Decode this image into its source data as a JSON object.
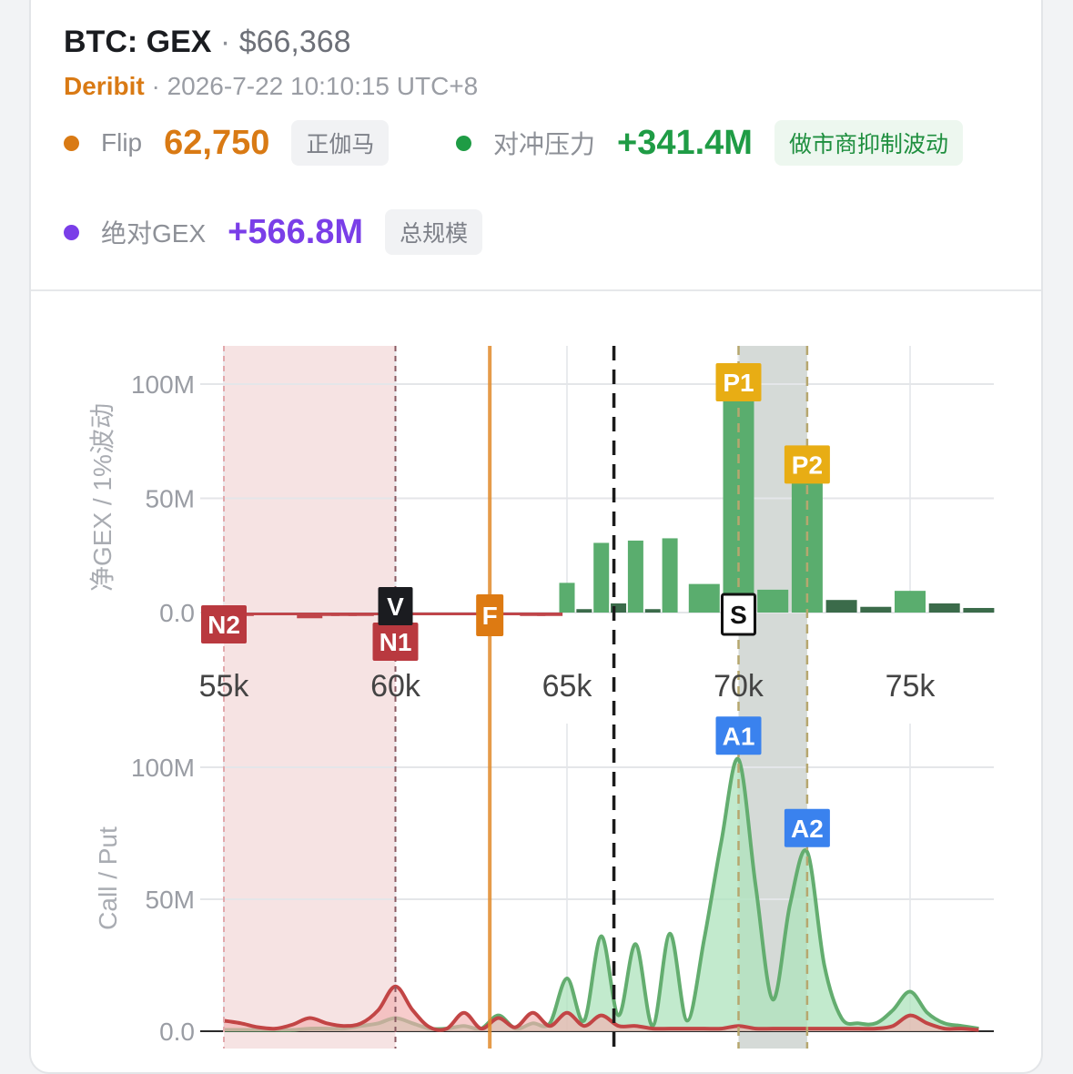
{
  "header": {
    "title": "BTC: GEX",
    "separator": "·",
    "price": "$66,368",
    "exchange": "Deribit",
    "sub_separator": "·",
    "timestamp": "2026-7-22 10:10:15 UTC+8"
  },
  "metrics": {
    "flip": {
      "label": "Flip",
      "value": "62,750",
      "tag": "正伽马",
      "color": "#d97a14"
    },
    "pressure": {
      "label": "对冲压力",
      "value": "+341.4M",
      "tag": "做市商抑制波动",
      "color": "#1f9c45"
    },
    "abs_gex": {
      "label": "绝对GEX",
      "value": "+566.8M",
      "tag": "总规模",
      "color": "#7a3ee8"
    }
  },
  "colors": {
    "positive_bar": "#5aad6e",
    "positive_bar_dark": "#3b6b4a",
    "negative_bar": "#bf454a",
    "flip_line": "#e08a2a",
    "zone_red": "#f5dede",
    "zone_gray": "#c3cbc6",
    "peak_label": "#e8ad14",
    "neg_label": "#b9393f",
    "call_line": "#63ad6f",
    "call_fill": "#aee3bc",
    "put_line": "#c24545",
    "put_fill": "#f3b0b0",
    "a_label": "#3a82ee"
  },
  "chart_data": [
    {
      "type": "bar",
      "ylabel": "净GEX / 1%波动",
      "ylim": [
        -12,
        118
      ],
      "xlim": [
        54500,
        77300
      ],
      "x_ticks": [
        {
          "value": 55000,
          "label": "55k"
        },
        {
          "value": 60000,
          "label": "60k"
        },
        {
          "value": 65000,
          "label": "65k"
        },
        {
          "value": 70000,
          "label": "70k"
        },
        {
          "value": 75000,
          "label": "75k"
        }
      ],
      "y_ticks": [
        {
          "value": 0,
          "label": "0.0"
        },
        {
          "value": 50,
          "label": "50M"
        },
        {
          "value": 100,
          "label": "100M"
        }
      ],
      "bars": [
        {
          "x": 55500,
          "y": -1.5
        },
        {
          "x": 56000,
          "y": -1.0
        },
        {
          "x": 56500,
          "y": -0.5
        },
        {
          "x": 57000,
          "y": -0.8
        },
        {
          "x": 57500,
          "y": -2.5
        },
        {
          "x": 58000,
          "y": -1.5
        },
        {
          "x": 58500,
          "y": -1.5
        },
        {
          "x": 59000,
          "y": -1.5
        },
        {
          "x": 59500,
          "y": -1.0
        },
        {
          "x": 60000,
          "y": -3.0
        },
        {
          "x": 60500,
          "y": -0.8
        },
        {
          "x": 61000,
          "y": -0.5
        },
        {
          "x": 61500,
          "y": -0.5
        },
        {
          "x": 62000,
          "y": -1.0
        },
        {
          "x": 62500,
          "y": -0.8
        },
        {
          "x": 63000,
          "y": -0.8
        },
        {
          "x": 63500,
          "y": -1.0
        },
        {
          "x": 64000,
          "y": -1.5
        },
        {
          "x": 64500,
          "y": -1.5
        },
        {
          "x": 65000,
          "y": 13.0
        },
        {
          "x": 65500,
          "y": 1.5
        },
        {
          "x": 66000,
          "y": 30.5
        },
        {
          "x": 66500,
          "y": 4.0
        },
        {
          "x": 67000,
          "y": 31.5
        },
        {
          "x": 67500,
          "y": 1.5
        },
        {
          "x": 68000,
          "y": 32.5
        },
        {
          "x": 69000,
          "y": 12.5
        },
        {
          "x": 70000,
          "y": 100.0
        },
        {
          "x": 71000,
          "y": 10.0
        },
        {
          "x": 72000,
          "y": 64.0
        },
        {
          "x": 73000,
          "y": 5.5
        },
        {
          "x": 74000,
          "y": 2.5
        },
        {
          "x": 75000,
          "y": 9.5
        },
        {
          "x": 76000,
          "y": 4.0
        },
        {
          "x": 77000,
          "y": 2.0
        }
      ],
      "zones": [
        {
          "from": 55000,
          "to": 60000,
          "kind": "negative"
        },
        {
          "from": 70000,
          "to": 72000,
          "kind": "positive"
        }
      ],
      "vlines": [
        {
          "x": 62750,
          "style": "flip"
        },
        {
          "x": 66368,
          "style": "spot"
        },
        {
          "x": 55000,
          "style": "neg-dash"
        },
        {
          "x": 60000,
          "style": "neg-dash"
        },
        {
          "x": 70000,
          "style": "pos-dash"
        },
        {
          "x": 72000,
          "style": "pos-dash"
        }
      ],
      "markers": [
        {
          "text": "P1",
          "x": 70000,
          "y": 100.0,
          "kind": "peak"
        },
        {
          "text": "P2",
          "x": 72000,
          "y": 64.0,
          "kind": "peak"
        },
        {
          "text": "N1",
          "x": 60000,
          "y": -3.0,
          "kind": "neg"
        },
        {
          "text": "N2",
          "x": 55000,
          "y": -1.5,
          "kind": "neg"
        },
        {
          "text": "V",
          "x": 60000,
          "y": 0,
          "kind": "v"
        },
        {
          "text": "F",
          "x": 62750,
          "y": 0,
          "kind": "flip"
        },
        {
          "text": "S",
          "x": 70000,
          "y": 0,
          "kind": "s"
        }
      ]
    },
    {
      "type": "area",
      "ylabel": "Call / Put",
      "ylim": [
        0,
        118
      ],
      "xlim": [
        54500,
        77300
      ],
      "y_ticks": [
        {
          "value": 0,
          "label": "0.0"
        },
        {
          "value": 50,
          "label": "50M"
        },
        {
          "value": 100,
          "label": "100M"
        }
      ],
      "series": [
        {
          "name": "Call",
          "x": [
            55000,
            55500,
            56000,
            56500,
            57000,
            57500,
            58000,
            58500,
            59000,
            59500,
            60000,
            60500,
            61000,
            61500,
            62000,
            62500,
            63000,
            63500,
            64000,
            64500,
            65000,
            65500,
            66000,
            66500,
            67000,
            67500,
            68000,
            68500,
            69000,
            69500,
            70000,
            70500,
            71000,
            71500,
            72000,
            72500,
            73000,
            73500,
            74000,
            74500,
            75000,
            75500,
            76000,
            76500,
            77000
          ],
          "values": [
            0.5,
            0.5,
            0.5,
            0.5,
            0.5,
            1.0,
            1.0,
            1.0,
            2.0,
            3.0,
            5.0,
            3.0,
            1.0,
            1.0,
            2.0,
            1.0,
            6.0,
            1.0,
            3.0,
            3.0,
            20.0,
            4.0,
            36.0,
            6.0,
            33.0,
            2.0,
            37.0,
            4.0,
            35.0,
            72.0,
            103.0,
            55.0,
            12.0,
            48.0,
            68.0,
            25.0,
            5.0,
            3.0,
            3.0,
            8.0,
            15.0,
            7.0,
            3.0,
            2.0,
            1.0
          ]
        },
        {
          "name": "Put",
          "x": [
            55000,
            55500,
            56000,
            56500,
            57000,
            57500,
            58000,
            58500,
            59000,
            59500,
            60000,
            60500,
            61000,
            61500,
            62000,
            62500,
            63000,
            63500,
            64000,
            64500,
            65000,
            65500,
            66000,
            66500,
            67000,
            67500,
            68000,
            68500,
            69000,
            69500,
            70000,
            70500,
            71000,
            71500,
            72000,
            72500,
            73000,
            73500,
            74000,
            74500,
            75000,
            75500,
            76000,
            76500,
            77000
          ],
          "values": [
            4.0,
            3.0,
            1.5,
            1.0,
            2.5,
            5.0,
            3.0,
            2.0,
            3.0,
            8.0,
            17.0,
            8.0,
            1.5,
            1.0,
            7.0,
            1.0,
            5.0,
            1.5,
            7.0,
            2.0,
            7.0,
            2.0,
            6.0,
            2.0,
            2.0,
            1.0,
            1.0,
            1.0,
            1.0,
            1.0,
            2.0,
            1.0,
            1.0,
            1.0,
            1.0,
            1.0,
            1.0,
            1.0,
            1.0,
            2.0,
            6.0,
            3.0,
            1.0,
            1.0,
            0.5
          ]
        }
      ],
      "markers": [
        {
          "text": "A1",
          "x": 70000,
          "y": 103.0,
          "kind": "a"
        },
        {
          "text": "A2",
          "x": 72000,
          "y": 68.0,
          "kind": "a"
        }
      ]
    }
  ]
}
